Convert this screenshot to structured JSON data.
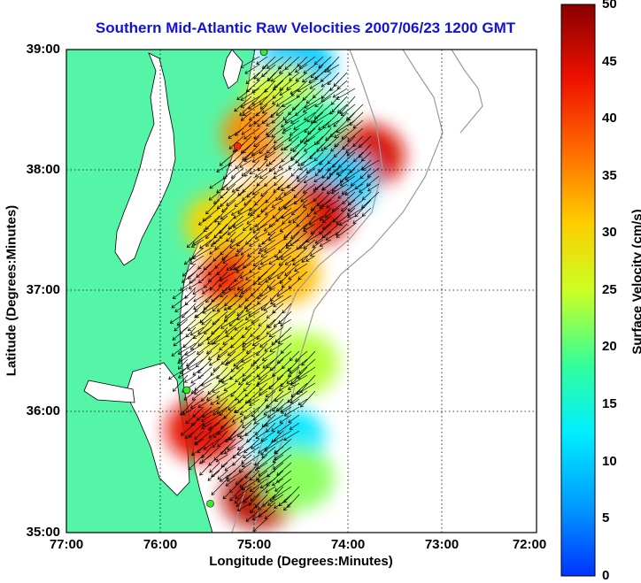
{
  "title": "Southern Mid-Atlantic Raw Velocities 2007/06/23 1200 GMT",
  "xaxis": {
    "label": "Longitude (Degrees:Minutes)",
    "ticks": [
      "77:00",
      "76:00",
      "75:00",
      "74:00",
      "73:00",
      "72:00"
    ]
  },
  "yaxis": {
    "label": "Latitude (Degrees:Minutes)",
    "ticks": [
      "39:00",
      "38:00",
      "37:00",
      "36:00",
      "35:00"
    ]
  },
  "colorbar": {
    "label": "Surface Velocity (cm/s)",
    "ticks": [
      "50",
      "45",
      "40",
      "35",
      "30",
      "25",
      "20",
      "15",
      "10",
      "5",
      "0"
    ],
    "min": 0,
    "max": 50,
    "units": "cm/s"
  },
  "colors": {
    "land": "#55f5a8",
    "title": "#1212d8",
    "station_active": "#ff2a00",
    "station_inactive": "#33ee33",
    "bathymetry": "#9a9a9a"
  },
  "map_extent": {
    "lon": [
      -77,
      -72
    ],
    "lat": [
      35,
      39
    ]
  },
  "stations": [
    {
      "lon": -74.9,
      "lat": 38.98,
      "status": "inactive"
    },
    {
      "lon": -75.18,
      "lat": 38.2,
      "status": "active"
    },
    {
      "lon": -75.72,
      "lat": 36.18,
      "status": "inactive"
    },
    {
      "lon": -75.47,
      "lat": 35.24,
      "status": "inactive"
    }
  ],
  "velocity_field": [
    {
      "lon": -74.55,
      "lat": 38.88,
      "speed": 10
    },
    {
      "lon": -74.7,
      "lat": 38.6,
      "speed": 25
    },
    {
      "lon": -74.95,
      "lat": 38.3,
      "speed": 35
    },
    {
      "lon": -74.4,
      "lat": 38.35,
      "speed": 18
    },
    {
      "lon": -73.8,
      "lat": 38.12,
      "speed": 45
    },
    {
      "lon": -74.1,
      "lat": 37.9,
      "speed": 10
    },
    {
      "lon": -74.35,
      "lat": 37.65,
      "speed": 45
    },
    {
      "lon": -74.85,
      "lat": 37.65,
      "speed": 33
    },
    {
      "lon": -75.35,
      "lat": 37.55,
      "speed": 30
    },
    {
      "lon": -75.2,
      "lat": 37.1,
      "speed": 42
    },
    {
      "lon": -74.7,
      "lat": 37.15,
      "speed": 32
    },
    {
      "lon": -75.2,
      "lat": 36.65,
      "speed": 28
    },
    {
      "lon": -74.5,
      "lat": 36.4,
      "speed": 24
    },
    {
      "lon": -75.0,
      "lat": 36.15,
      "speed": 26
    },
    {
      "lon": -75.55,
      "lat": 35.85,
      "speed": 44
    },
    {
      "lon": -74.65,
      "lat": 35.78,
      "speed": 12
    },
    {
      "lon": -74.95,
      "lat": 35.3,
      "speed": 47
    },
    {
      "lon": -74.55,
      "lat": 35.45,
      "speed": 22
    }
  ]
}
